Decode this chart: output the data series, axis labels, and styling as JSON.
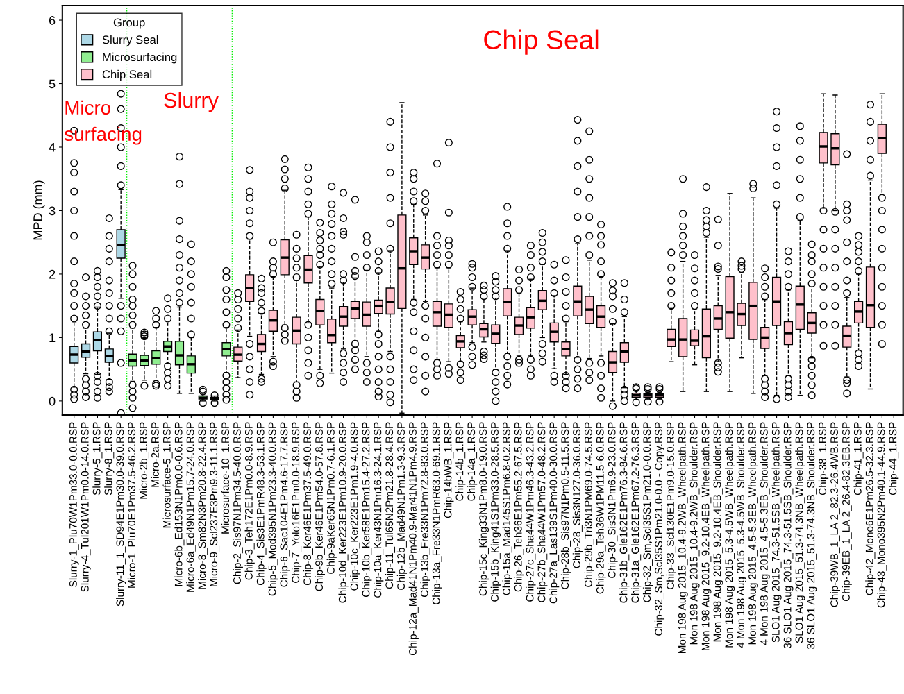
{
  "chart_data": {
    "type": "box",
    "ylabel": "MPD (mm)",
    "legend_title": "Group",
    "legend": "top left",
    "marker": "circle",
    "line_style": "dashed",
    "ylim": [
      -0.22,
      6.23
    ],
    "yticks": [
      0,
      1,
      2,
      3,
      4,
      5,
      6
    ],
    "annotations": [
      "Micro\nsurfacing",
      "Slurry",
      "Chip Seal"
    ],
    "categories": [
      "Slurry-1_Plu70W1Pm33.0-0.0.RSP",
      "Slurry-4_Tul201W1Pm0.0-14.0.RSP",
      "Slurry-5_1.RSP",
      "Slurry-8_1.RSP",
      "Slurry-11_1_SD94E1Pm30.0-39.0.RSP",
      "Micro-1_Plu70E1Pm37.5-46.2.RSP",
      "Micro-2b_1.RSP",
      "Micro-2a.RSP",
      "Microsurface-5_1.RSP",
      "Micro-6b_Ed153N1Pm0.0-0.6.RSP",
      "Micro-6a_Ed49N1Pm15.7-24.0.RSP",
      "Micro-8_Sm82N3Pm20.8-22.4.RSP",
      "Micro-9_Scl237E3Pm9.3-11.1.RSP",
      "Microsurface-10_1.RSP",
      "Chip-2_Sis97N1Pm34.5-40.0.RSP",
      "Chip-3_Teh172E1Pm0.0-8.9.RSP",
      "Chip-4_Sis3E1PmR48.3-53.1.RSP",
      "Chip-5_Mod395N1Pm23.3-40.0.RSP",
      "Chip-6_Sac104E1Pm4.6-17.7.RSP",
      "Chip-7_Yolo16E1Pm0.0-18.9.RSP",
      "Chip-8_Ker46E1Pm37.5-49.0.RSP",
      "Chip-9b_Ker46E1Pm54.0-57.8.RSP",
      "Chip-9aKer65N1Pm0.7-6.1.RSP",
      "Chip-10d_Ker223E1Pm10.9-20.0.RSP",
      "Chip-10c_Ker223E1Pm1.9-4.0.RSP",
      "Chip-10b_Ker58E1Pm15.4-27.2.RSP",
      "Chip-10a_Ker43N1Pm16.3-24.1.RSP",
      "Chip-11_Tul65N2Pm21.8-28.4.RSP",
      "Chip-12b_Mad49N1Pm1.3-9.3.RSP",
      "Chip-12a_Mad41N1Pm40.9-Mar41N1Pm4.9.RSP",
      "Chip-13b_Fre33N1Pm72.8-83.0.RSP",
      "Chip-13a_Fre33N1PmR63.0-69.1.RSP",
      "Chip-14bWB_1.RSP",
      "Chip-14b_1.RSP",
      "Chip-14a_1.RSP",
      "Chip-15c_King33N1Pm8.0-19.0.RSP",
      "Chip-15b_King41S1Pm33.0-28.5.RSP",
      "Chip-15a_Mad145S1Pm6.8-0.2.RSP",
      "Chip-26_Teh36E1Pm55.2-67.5.RSP",
      "Chip-27c_Sha44W1Pm46.3-43.2.RSP",
      "Chip-27b_Sha44W1Pm57.0-48.2.RSP",
      "Chip-27a_Las139S1Pm40.0-30.0.RSP",
      "Chip-28b_Sis97N1Pm0.5-11.5.RSP",
      "Chip-28_Sis3N127.0-36.0.RSP",
      "Chip-29b_Tri3N1PM69.0-74.5.RSP",
      "Chip-29a_Teh36W1PM11.5-6.0.RSP",
      "Chip-30_Sis3N1Pm6.9-23.0.RSP",
      "Chip-31b_Gle162E1Pm76.3-84.6.RSP",
      "Chip-31a_Gle162E1Pm67.2-76.3.RSP",
      "Chip-32_Sm,Scl35S1Pm21.0-0.0.RSP",
      "Chip-32_Sm,Scl35S1Pm21.0-0.0 - Copy.RSP",
      "Chip-33_Scl130E1Pm9.0-15.0.RSP",
      "Mon 198 Aug 2015_10.4-9.2WB_Wheelpath.RSP",
      "Mon 198 Aug 2015_10.4-9.2WB_Shoulder.RSP",
      "Mon 198 Aug 2015_9.2-10.4EB_Wheelpath.RSP",
      "Mon 198 Aug 2015_9.2-10.4EB_Shoulder.RSP",
      "Mon 198 Aug 2015_5.3-4.5WB_Wheelpath.RSP",
      "4 Mon 198 Aug 2015_5.3-4.5WB_Shoulder.RSP",
      "Mon 198 Aug 2015_4.5-5.3EB_Wheelpath.RSP",
      "4 Mon 198 Aug 2015_4.5-5.3EB_Shoulder.RSP",
      "SLO1 Aug 2015_74.3-51.5SB_Wheelpath.RSP",
      "36 SLO1 Aug 2015_74.3-51.5SB_Shoulder.RSP",
      "SLO1 Aug 2015_51.3-74.3NB_Wheelpath.RSP",
      "36 SLO1 Aug 2015_51.3-74.3NB_Shoulder.RSP",
      "Chip-38_1.RSP",
      "Chip-39WB_1_LA 2_82.3-26.4WB.RSP",
      "Chip-39EB_1_LA 2_26.4-82.3EB.RSP",
      "Chip-41_1.RSP",
      "Chip-42_Mono6E1Pm26.5-32.3.RSP",
      "Chip-43_Mono395N2Pm40.1-44.9.RSP",
      "Chip-44_1.RSP"
    ],
    "series": [
      {
        "name": "Slurry Seal",
        "color": "#add8e6",
        "boxes": [
          {
            "low": 0.22,
            "q1": 0.6,
            "median": 0.73,
            "q3": 0.86,
            "high": 1.23,
            "outliers": [
              0.03,
              0.1,
              0.18,
              1.3,
              1.5,
              1.7,
              1.85,
              2.2,
              2.6,
              3.0,
              3.3,
              3.6,
              3.75,
              4.26
            ]
          },
          {
            "low": 0.43,
            "q1": 0.69,
            "median": 0.78,
            "q3": 0.9,
            "high": 1.15,
            "outliers": [
              0.06,
              0.15,
              0.25,
              0.35,
              1.2,
              1.35,
              1.5,
              1.65,
              1.95
            ]
          },
          {
            "low": 0.42,
            "q1": 0.79,
            "median": 0.96,
            "q3": 1.09,
            "high": 1.48,
            "outliers": [
              0.05,
              0.15,
              0.3,
              0.4,
              1.5,
              1.65,
              1.8,
              1.95,
              2.05
            ]
          },
          {
            "low": 0.34,
            "q1": 0.61,
            "median": 0.71,
            "q3": 0.82,
            "high": 1.07,
            "outliers": [
              0.15,
              0.22,
              0.3,
              1.1,
              1.3,
              1.5,
              1.7,
              1.9,
              2.2,
              2.4,
              2.6,
              2.88
            ]
          },
          {
            "low": 1.62,
            "q1": 2.25,
            "median": 2.46,
            "q3": 2.7,
            "high": 3.33,
            "outliers": [
              -0.19,
              0.6,
              1.1,
              1.3,
              1.5,
              3.4,
              3.7,
              4.0,
              4.3,
              4.6,
              4.84
            ]
          },
          null,
          null,
          null,
          null,
          null,
          null,
          null,
          null,
          null,
          null,
          null,
          null,
          null,
          null,
          null,
          null,
          null,
          null,
          null,
          null,
          null,
          null,
          null,
          null,
          null,
          null,
          null,
          null,
          null,
          null,
          null,
          null,
          null,
          null,
          null,
          null,
          null,
          null,
          null,
          null,
          null,
          null,
          null,
          null,
          null,
          null,
          null,
          null,
          null,
          null,
          null,
          null,
          null,
          null,
          null,
          null,
          null,
          null,
          null,
          null,
          null,
          null,
          null,
          null,
          null,
          null
        ]
      },
      {
        "name": "Microsurfacing",
        "color": "#90ee90",
        "boxes": [
          null,
          null,
          null,
          null,
          null,
          {
            "low": 0.31,
            "q1": 0.55,
            "median": 0.64,
            "q3": 0.74,
            "high": 1.15,
            "outliers": [
              -0.11,
              0.05,
              0.15,
              0.25,
              1.2,
              1.35,
              1.5,
              1.6,
              1.8,
              2.0,
              2.13
            ]
          },
          {
            "low": 0.33,
            "q1": 0.56,
            "median": 0.64,
            "q3": 0.72,
            "high": 0.99,
            "outliers": [
              0.24,
              1.02,
              1.05,
              1.08
            ]
          },
          {
            "low": 0.33,
            "q1": 0.58,
            "median": 0.68,
            "q3": 0.79,
            "high": 1.16,
            "outliers": [
              0.24,
              0.27,
              1.2,
              1.3,
              1.42
            ]
          },
          {
            "low": 0.59,
            "q1": 0.78,
            "median": 0.86,
            "q3": 0.94,
            "high": 1.26,
            "outliers": [
              0.24,
              0.35,
              0.45,
              0.55,
              1.3,
              1.45,
              1.62
            ]
          },
          {
            "low": 0.12,
            "q1": 0.57,
            "median": 0.72,
            "q3": 0.94,
            "high": 1.48,
            "outliers": [
              1.55,
              1.7,
              1.9,
              2.1,
              2.3,
              2.55,
              2.84,
              3.42,
              3.85
            ]
          },
          {
            "low": 0.12,
            "q1": 0.44,
            "median": 0.58,
            "q3": 0.71,
            "high": 1.0,
            "outliers": [
              1.05,
              1.3,
              1.55,
              1.8,
              2.0,
              2.2,
              2.47
            ]
          },
          {
            "low": 0.0,
            "q1": 0.03,
            "median": 0.05,
            "q3": 0.08,
            "high": 0.12,
            "outliers": [
              -0.03,
              0.15,
              0.18
            ]
          },
          {
            "low": 0.0,
            "q1": 0.02,
            "median": 0.04,
            "q3": 0.06,
            "high": 0.08,
            "outliers": [
              -0.03,
              0.09
            ]
          },
          {
            "low": 0.45,
            "q1": 0.71,
            "median": 0.82,
            "q3": 0.92,
            "high": 1.16,
            "outliers": [
              0.02,
              0.1,
              0.2,
              0.3,
              0.4,
              1.2,
              1.4,
              1.6,
              1.75,
              1.95,
              2.05
            ]
          },
          null,
          null,
          null,
          null,
          null,
          null,
          null,
          null,
          null,
          null,
          null,
          null,
          null,
          null,
          null,
          null,
          null,
          null,
          null,
          null,
          null,
          null,
          null,
          null,
          null,
          null,
          null,
          null,
          null,
          null,
          null,
          null,
          null,
          null,
          null,
          null,
          null,
          null,
          null,
          null,
          null,
          null,
          null,
          null,
          null,
          null,
          null,
          null,
          null,
          null,
          null,
          null,
          null,
          null,
          null,
          null,
          null
        ]
      },
      {
        "name": "Chip Seal",
        "color": "#ffc0cb",
        "boxes": [
          null,
          null,
          null,
          null,
          null,
          null,
          null,
          null,
          null,
          null,
          null,
          null,
          null,
          null,
          {
            "low": 0.37,
            "q1": 0.63,
            "median": 0.73,
            "q3": 0.85,
            "high": 1.12,
            "outliers": [
              1.15,
              1.3,
              1.45,
              1.6,
              1.7
            ]
          },
          {
            "low": 1.02,
            "q1": 1.57,
            "median": 1.78,
            "q3": 1.99,
            "high": 2.55,
            "outliers": [
              0.1,
              0.3,
              0.5,
              0.7,
              0.9,
              2.6,
              2.8,
              3.0,
              3.2,
              3.3,
              3.64
            ]
          },
          {
            "low": 0.42,
            "q1": 0.78,
            "median": 0.9,
            "q3": 1.05,
            "high": 1.38,
            "outliers": [
              0.3,
              0.35,
              1.42,
              1.55,
              1.7,
              1.78,
              1.93
            ]
          },
          {
            "low": 0.7,
            "q1": 1.1,
            "median": 1.27,
            "q3": 1.43,
            "high": 1.96,
            "outliers": [
              0.55,
              0.62,
              2.0,
              2.1,
              2.2,
              2.5
            ]
          },
          {
            "low": 1.2,
            "q1": 1.99,
            "median": 2.26,
            "q3": 2.54,
            "high": 3.32,
            "outliers": [
              0.95,
              1.05,
              1.15,
              3.35,
              3.5,
              3.65,
              3.81
            ]
          },
          {
            "low": 0.3,
            "q1": 0.9,
            "median": 1.11,
            "q3": 1.32,
            "high": 1.9,
            "outliers": [
              0.05,
              0.15,
              0.25,
              1.95,
              2.1,
              2.25,
              2.4,
              2.62
            ]
          },
          {
            "low": 1.23,
            "q1": 1.86,
            "median": 2.07,
            "q3": 2.29,
            "high": 2.9,
            "outliers": [
              0.4,
              0.6,
              0.8,
              1.0,
              1.2,
              2.95,
              3.1,
              3.3,
              3.5,
              3.68
            ]
          },
          {
            "low": 0.5,
            "q1": 1.2,
            "median": 1.42,
            "q3": 1.6,
            "high": 2.12,
            "outliers": [
              0.28,
              0.4,
              2.15,
              2.3,
              2.4,
              2.53,
              2.65,
              2.81
            ]
          },
          {
            "low": 0.44,
            "q1": 0.92,
            "median": 1.04,
            "q3": 1.29,
            "high": 1.78,
            "outliers": [
              1.85,
              2.0,
              2.2,
              2.4,
              2.6,
              2.79,
              2.95,
              3.1,
              3.38
            ]
          },
          {
            "low": 0.82,
            "q1": 1.18,
            "median": 1.33,
            "q3": 1.49,
            "high": 1.87,
            "outliers": [
              0.3,
              0.45,
              0.6,
              0.75,
              1.9,
              2.0,
              2.62,
              2.67,
              2.88,
              3.28
            ]
          },
          {
            "low": 0.95,
            "q1": 1.3,
            "median": 1.46,
            "q3": 1.57,
            "high": 1.94,
            "outliers": [
              0.5,
              0.65,
              0.8,
              0.9,
              1.97,
              2.05,
              2.27,
              3.17
            ]
          },
          {
            "low": 0.7,
            "q1": 1.18,
            "median": 1.36,
            "q3": 1.56,
            "high": 2.06,
            "outliers": [
              0.3,
              0.45,
              0.6,
              2.1,
              2.3,
              2.5,
              2.6
            ]
          },
          {
            "low": 1.1,
            "q1": 1.38,
            "median": 1.5,
            "q3": 1.59,
            "high": 2.02,
            "outliers": [
              0.07,
              0.15,
              0.3,
              0.5,
              0.7,
              0.9,
              1.05,
              2.05,
              2.2,
              2.36
            ]
          },
          {
            "low": 0.78,
            "q1": 1.37,
            "median": 1.56,
            "q3": 1.78,
            "high": 2.37,
            "outliers": [
              -0.02,
              0.1,
              0.3,
              0.5,
              0.7,
              2.4,
              2.8,
              3.2,
              3.6,
              4.0,
              4.4
            ]
          },
          {
            "low": -0.19,
            "q1": 1.46,
            "median": 2.09,
            "q3": 2.93,
            "high": 4.7
          },
          {
            "low": 1.6,
            "q1": 2.15,
            "median": 2.36,
            "q3": 2.57,
            "high": 3.1,
            "outliers": [
              0.33,
              0.5,
              0.8,
              1.1,
              1.4,
              1.55,
              3.15,
              3.3,
              3.5,
              3.6
            ]
          },
          {
            "low": 1.57,
            "q1": 2.08,
            "median": 2.26,
            "q3": 2.46,
            "high": 2.93,
            "outliers": [
              0.15,
              0.4,
              0.7,
              1.0,
              1.3,
              1.5,
              3.0,
              3.15,
              3.27
            ]
          },
          {
            "low": 0.65,
            "q1": 1.18,
            "median": 1.4,
            "q3": 1.57,
            "high": 2.1,
            "outliers": [
              0.4,
              0.5,
              0.6,
              2.15,
              2.3,
              2.45,
              2.6,
              3.74
            ]
          },
          {
            "low": 0.62,
            "q1": 1.16,
            "median": 1.36,
            "q3": 1.53,
            "high": 2.1,
            "outliers": [
              0.43,
              0.52,
              2.15,
              2.3,
              2.45,
              2.53,
              2.97,
              4.07
            ]
          },
          {
            "low": 0.62,
            "q1": 0.84,
            "median": 0.94,
            "q3": 1.03,
            "high": 1.25,
            "outliers": [
              0.33,
              0.45,
              0.58,
              1.3,
              1.45,
              1.6,
              1.72
            ]
          },
          {
            "low": 0.92,
            "q1": 1.2,
            "median": 1.33,
            "q3": 1.44,
            "high": 1.78,
            "outliers": [
              0.57,
              0.7,
              0.85,
              1.8,
              1.95,
              2.1,
              2.16
            ]
          },
          {
            "low": 0.93,
            "q1": 1.01,
            "median": 1.13,
            "q3": 1.22,
            "high": 1.62,
            "outliers": [
              0.66,
              0.72,
              0.78,
              1.65,
              1.75,
              1.82
            ]
          },
          {
            "low": 0.5,
            "q1": 0.91,
            "median": 1.06,
            "q3": 1.2,
            "high": 1.62,
            "outliers": [
              0.0,
              0.15,
              0.3,
              0.45,
              1.65,
              1.75,
              1.88,
              1.97
            ]
          },
          {
            "low": 0.75,
            "q1": 1.34,
            "median": 1.56,
            "q3": 1.77,
            "high": 2.37,
            "outliers": [
              0.26,
              0.4,
              0.55,
              0.7,
              2.4,
              2.6,
              2.8,
              3.06
            ]
          },
          {
            "low": 0.71,
            "q1": 1.05,
            "median": 1.19,
            "q3": 1.32,
            "high": 1.7,
            "outliers": [
              0.6,
              0.65,
              1.75,
              1.9,
              2.07
            ]
          },
          {
            "low": 0.71,
            "q1": 1.15,
            "median": 1.32,
            "q3": 1.47,
            "high": 1.92,
            "outliers": [
              0.4,
              0.5,
              0.65,
              1.95,
              2.1,
              2.3,
              2.45
            ]
          },
          {
            "low": 1.0,
            "q1": 1.44,
            "median": 1.58,
            "q3": 1.74,
            "high": 2.15,
            "outliers": [
              0.62,
              0.75,
              0.9,
              2.2,
              2.35,
              2.5,
              2.65
            ]
          },
          {
            "low": 0.51,
            "q1": 0.93,
            "median": 1.09,
            "q3": 1.23,
            "high": 1.66,
            "outliers": [
              0.3,
              0.4,
              1.7,
              1.9,
              2.15
            ]
          },
          {
            "low": 0.42,
            "q1": 0.71,
            "median": 0.82,
            "q3": 0.93,
            "high": 1.25,
            "outliers": [
              0.2,
              0.3,
              0.4,
              1.3,
              1.5,
              1.72,
              1.95,
              2.22
            ]
          },
          {
            "low": 0.69,
            "q1": 1.34,
            "median": 1.57,
            "q3": 1.81,
            "high": 2.48,
            "outliers": [
              0.2,
              0.35,
              0.5,
              0.65,
              2.55,
              2.9,
              3.3,
              3.7,
              4.1,
              4.43
            ]
          },
          {
            "low": 0.67,
            "q1": 1.22,
            "median": 1.44,
            "q3": 1.65,
            "high": 2.22,
            "outliers": [
              0.33,
              0.45,
              0.6,
              2.3,
              2.6,
              2.9,
              3.2,
              3.5,
              3.8,
              4.25
            ]
          },
          {
            "low": 0.71,
            "q1": 1.16,
            "median": 1.33,
            "q3": 1.5,
            "high": 1.96,
            "outliers": [
              0.05,
              0.2,
              0.4,
              0.6,
              2.0,
              2.2,
              2.46,
              2.6,
              2.78
            ]
          },
          {
            "low": 0.0,
            "q1": 0.45,
            "median": 0.61,
            "q3": 0.78,
            "high": 1.22,
            "outliers": [
              -0.08,
              1.25,
              1.45,
              1.65,
              1.74,
              1.86
            ]
          },
          {
            "low": 0.21,
            "q1": 0.61,
            "median": 0.78,
            "q3": 0.92,
            "high": 1.33,
            "outliers": [
              0.0,
              0.1,
              0.18,
              1.4,
              1.6,
              1.86
            ]
          },
          {
            "low": 0.02,
            "q1": 0.06,
            "median": 0.09,
            "q3": 0.12,
            "high": 0.16,
            "outliers": [
              -0.02,
              0.2,
              0.22
            ]
          },
          {
            "low": 0.03,
            "q1": 0.06,
            "median": 0.09,
            "q3": 0.11,
            "high": 0.14,
            "outliers": [
              -0.01,
              0.19,
              0.22
            ]
          },
          {
            "low": 0.03,
            "q1": 0.06,
            "median": 0.09,
            "q3": 0.11,
            "high": 0.14,
            "outliers": [
              -0.01,
              0.19,
              0.22
            ]
          },
          {
            "low": 0.62,
            "q1": 0.86,
            "median": 0.97,
            "q3": 1.13,
            "high": 1.46,
            "outliers": [
              1.5,
              1.7,
              1.9,
              2.1,
              2.34
            ]
          },
          {
            "low": 0.15,
            "q1": 0.7,
            "median": 0.97,
            "q3": 1.3,
            "high": 2.2,
            "outliers": [
              2.3,
              2.45,
              2.6,
              2.75,
              2.95,
              3.5
            ]
          },
          {
            "low": 0.57,
            "q1": 0.87,
            "median": 0.95,
            "q3": 1.12,
            "high": 1.44,
            "outliers": [
              1.5,
              1.7,
              1.9,
              2.09,
              2.3
            ]
          },
          {
            "low": 0.15,
            "q1": 0.68,
            "median": 1.02,
            "q3": 1.45,
            "high": 2.58,
            "outliers": [
              2.65,
              2.75,
              2.85,
              3.0,
              3.37
            ]
          },
          {
            "low": 0.62,
            "q1": 1.13,
            "median": 1.3,
            "q3": 1.5,
            "high": 1.98,
            "outliers": [
              0.46,
              0.53,
              0.6,
              2.08,
              2.12,
              2.45,
              2.86
            ]
          },
          {
            "low": 0.15,
            "q1": 0.99,
            "median": 1.4,
            "q3": 1.96,
            "high": 3.27
          },
          {
            "low": 0.68,
            "q1": 1.19,
            "median": 1.37,
            "q3": 1.54,
            "high": 2.02,
            "outliers": [
              2.08,
              2.13,
              2.2
            ]
          },
          {
            "low": 0.12,
            "q1": 0.97,
            "median": 1.5,
            "q3": 1.87,
            "high": 3.2,
            "outliers": [
              3.35,
              3.42
            ]
          },
          {
            "low": 0.4,
            "q1": 0.83,
            "median": 1.0,
            "q3": 1.16,
            "high": 1.6,
            "outliers": [
              0.06,
              0.15,
              0.25,
              0.35,
              1.65,
              1.8,
              1.95,
              2.09
            ]
          },
          {
            "low": 0.09,
            "q1": 1.19,
            "median": 1.57,
            "q3": 1.95,
            "high": 3.04,
            "outliers": [
              0.03,
              3.1,
              3.4,
              3.7,
              4.0,
              4.3,
              4.56
            ]
          },
          {
            "low": 0.4,
            "q1": 0.89,
            "median": 1.07,
            "q3": 1.25,
            "high": 1.75,
            "outliers": [
              0.06,
              0.15,
              0.25,
              0.35,
              1.8,
              2.0,
              2.2,
              2.36
            ]
          },
          {
            "low": 0.09,
            "q1": 1.13,
            "median": 1.52,
            "q3": 1.81,
            "high": 2.84,
            "outliers": [
              2.9,
              3.2,
              3.5,
              3.8,
              4.1,
              4.33
            ]
          },
          {
            "low": 0.68,
            "q1": 1.07,
            "median": 1.23,
            "q3": 1.39,
            "high": 1.8,
            "outliers": [
              0.09,
              0.25,
              0.4,
              0.55,
              0.65,
              1.85,
              2.0,
              2.2,
              2.3,
              2.47
            ]
          },
          {
            "low": 3.04,
            "q1": 3.75,
            "median": 4.01,
            "q3": 4.23,
            "high": 4.84,
            "outliers": [
              0.87,
              1.2,
              1.5,
              1.8,
              2.1,
              2.4,
              2.7,
              3.0
            ]
          },
          {
            "low": 3.0,
            "q1": 3.72,
            "median": 3.98,
            "q3": 4.21,
            "high": 4.82,
            "outliers": [
              0.87,
              1.2,
              1.5,
              1.8,
              2.1,
              2.4,
              2.7,
              2.98
            ]
          },
          {
            "low": 0.38,
            "q1": 0.85,
            "median": 1.03,
            "q3": 1.18,
            "high": 1.63,
            "outliers": [
              0.12,
              0.28,
              0.33,
              1.7,
              1.9,
              2.2,
              2.5,
              2.85,
              3.0,
              3.1,
              3.89
            ]
          },
          {
            "low": 0.8,
            "q1": 1.23,
            "median": 1.41,
            "q3": 1.57,
            "high": 2.0,
            "outliers": [
              0.55,
              0.65,
              0.75,
              2.05,
              2.2,
              2.35,
              2.46,
              2.6
            ]
          },
          {
            "low": 0.19,
            "q1": 1.16,
            "median": 1.51,
            "q3": 2.11,
            "high": 3.48,
            "outliers": [
              3.55,
              3.8,
              4.1,
              4.4,
              4.67
            ]
          },
          {
            "low": 3.26,
            "q1": 3.9,
            "median": 4.14,
            "q3": 4.36,
            "high": 4.84,
            "outliers": [
              0.9,
              1.2,
              1.5,
              1.8,
              2.1,
              2.4,
              2.7,
              3.0,
              3.2
            ]
          },
          null
        ]
      }
    ]
  }
}
